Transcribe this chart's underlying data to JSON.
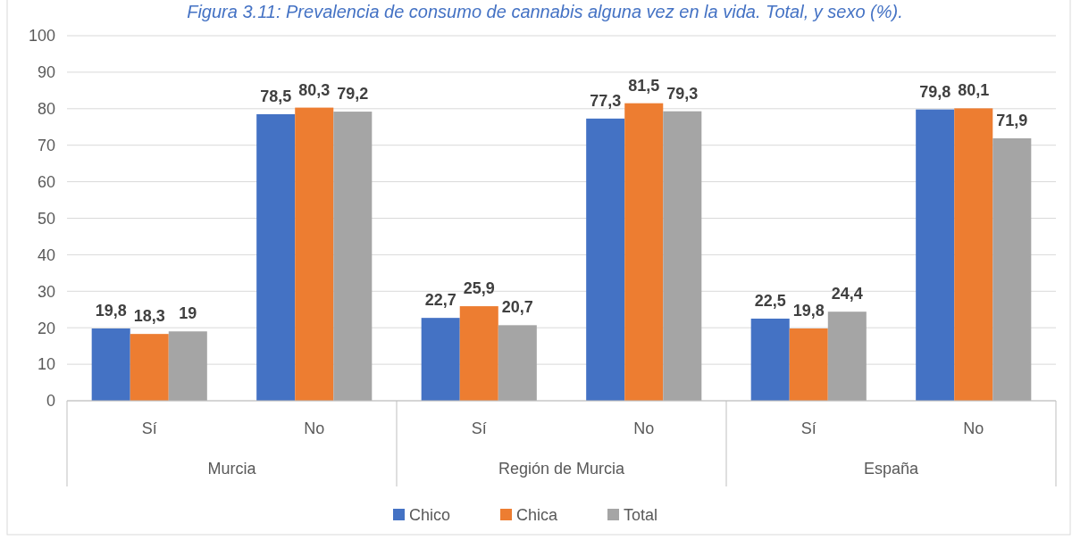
{
  "chart_data": {
    "type": "bar",
    "title": "Figura 3.11: Prevalencia de consumo de cannabis alguna vez en la vida. Total, y sexo (%).",
    "categories": [
      "Sí",
      "No",
      "Sí",
      "No",
      "Sí",
      "No"
    ],
    "series": [
      {
        "name": "Chico",
        "color": "#4472c4",
        "values": [
          19.8,
          78.5,
          22.7,
          77.3,
          22.5,
          79.8
        ],
        "value_labels": [
          "19,8",
          "78,5",
          "22,7",
          "77,3",
          "22,5",
          "79,8"
        ]
      },
      {
        "name": "Chica",
        "color": "#ed7d31",
        "values": [
          18.3,
          80.3,
          25.9,
          81.5,
          19.8,
          80.1
        ],
        "value_labels": [
          "18,3",
          "80,3",
          "25,9",
          "81,5",
          "19,8",
          "80,1"
        ]
      },
      {
        "name": "Total",
        "color": "#a5a5a5",
        "values": [
          19,
          79.2,
          20.7,
          79.3,
          24.4,
          71.9
        ],
        "value_labels": [
          "19",
          "79,2",
          "20,7",
          "79,3",
          "24,4",
          "71,9"
        ]
      }
    ],
    "annotations": [
      "Murcia",
      "Región de Murcia",
      "España"
    ],
    "ylim": [
      0,
      100
    ],
    "yticks": [
      0,
      10,
      20,
      30,
      40,
      50,
      60,
      70,
      80,
      90,
      100
    ],
    "grid": "y",
    "legend": "bottom"
  }
}
